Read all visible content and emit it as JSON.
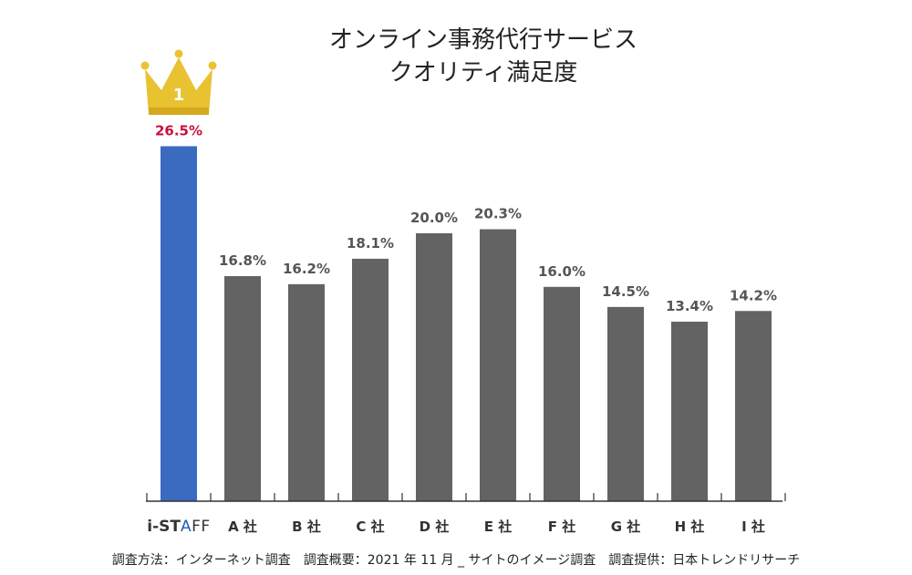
{
  "chart_data": {
    "type": "bar",
    "title_lines": [
      "オンライン事務代行サービス",
      "クオリティ満足度"
    ],
    "categories": [
      "i-STAFF",
      "A 社",
      "B 社",
      "C 社",
      "D 社",
      "E 社",
      "F 社",
      "G 社",
      "H 社",
      "I 社"
    ],
    "values": [
      26.5,
      16.8,
      16.2,
      18.1,
      20.0,
      20.3,
      16.0,
      14.5,
      13.4,
      14.2
    ],
    "value_labels": [
      "26.5%",
      "16.8%",
      "16.2%",
      "18.1%",
      "20.0%",
      "20.3%",
      "16.0%",
      "14.5%",
      "13.4%",
      "14.2%"
    ],
    "ylim": [
      0,
      30
    ],
    "grid": false,
    "highlight_index": 0,
    "rank_badge": "1",
    "brand": {
      "prefix": "i-ST",
      "accent": "A",
      "suffix": "FF"
    },
    "colors": {
      "highlight_bar": "#3a6bc0",
      "bar": "#636363",
      "highlight_label": "#c8103f",
      "label": "#555555",
      "crown": "#e9c232",
      "brand_accent": "#1e5eb5"
    }
  },
  "footnote": "調査方法：インターネット調査　調査概要：2021 年 11 月 _ サイトのイメージ調査　調査提供：日本トレンドリサーチ"
}
